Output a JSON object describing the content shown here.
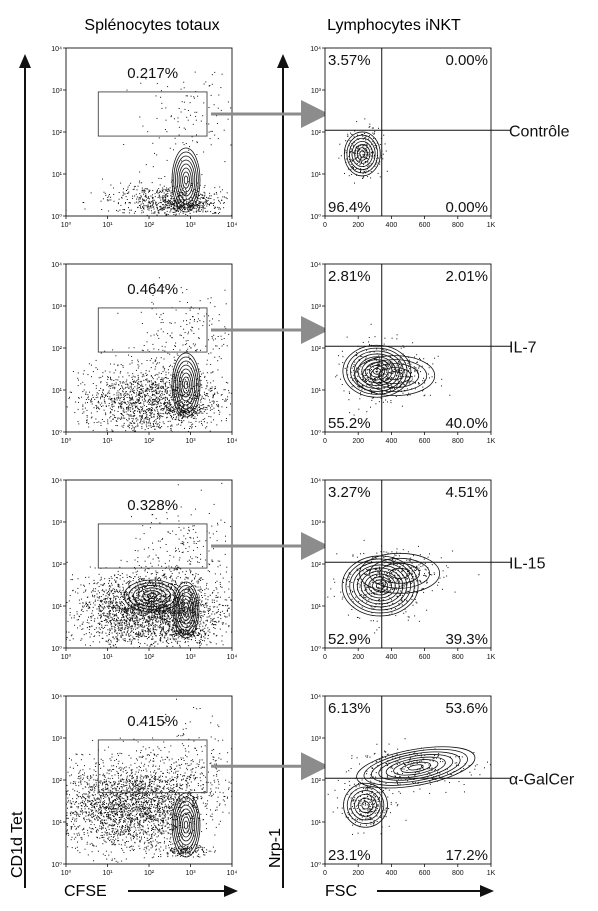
{
  "figure": {
    "left_column_title": "Splénocytes totaux",
    "right_column_title": "Lymphocytes iNKT",
    "left_y_axis_label": "CD1d Tet",
    "left_x_axis_label": "CFSE",
    "right_y_axis_label": "Nrp-1",
    "right_x_axis_label": "FSC",
    "colors": {
      "ink": "#111111",
      "arrow": "#8c8c8c",
      "gate": "#444444"
    }
  },
  "chart_data": [
    {
      "type": "contour",
      "panel": "splenocytes-controle",
      "x_scale": "log",
      "y_scale": "log",
      "xlim": [
        1,
        10000
      ],
      "ylim": [
        1,
        10000
      ],
      "x_tick_labels": [
        "10⁰",
        "10¹",
        "10²",
        "10³",
        "10⁴"
      ],
      "y_tick_labels": [
        "10⁰",
        "10¹",
        "10²",
        "10³",
        "10⁴"
      ],
      "gate": {
        "x_range": [
          6,
          2500
        ],
        "y_range": [
          80,
          900
        ],
        "label": "0.217%"
      }
    },
    {
      "type": "contour",
      "panel": "splenocytes-il7",
      "x_scale": "log",
      "y_scale": "log",
      "xlim": [
        1,
        10000
      ],
      "ylim": [
        1,
        10000
      ],
      "x_tick_labels": [
        "10⁰",
        "10¹",
        "10²",
        "10³",
        "10⁴"
      ],
      "y_tick_labels": [
        "10⁰",
        "10¹",
        "10²",
        "10³",
        "10⁴"
      ],
      "gate": {
        "x_range": [
          6,
          2500
        ],
        "y_range": [
          80,
          900
        ],
        "label": "0.464%"
      }
    },
    {
      "type": "contour",
      "panel": "splenocytes-il15",
      "x_scale": "log",
      "y_scale": "log",
      "xlim": [
        1,
        10000
      ],
      "ylim": [
        1,
        10000
      ],
      "x_tick_labels": [
        "10⁰",
        "10¹",
        "10²",
        "10³",
        "10⁴"
      ],
      "y_tick_labels": [
        "10⁰",
        "10¹",
        "10²",
        "10³",
        "10⁴"
      ],
      "gate": {
        "x_range": [
          6,
          2500
        ],
        "y_range": [
          80,
          900
        ],
        "label": "0.328%"
      }
    },
    {
      "type": "contour",
      "panel": "splenocytes-agalcer",
      "x_scale": "log",
      "y_scale": "log",
      "xlim": [
        1,
        10000
      ],
      "ylim": [
        1,
        10000
      ],
      "x_tick_labels": [
        "10⁰",
        "10¹",
        "10²",
        "10³",
        "10⁴"
      ],
      "y_tick_labels": [
        "10⁰",
        "10¹",
        "10²",
        "10³",
        "10⁴"
      ],
      "gate": {
        "x_range": [
          6,
          2500
        ],
        "y_range": [
          50,
          900
        ],
        "label": "0.415%"
      }
    },
    {
      "type": "contour",
      "panel": "inkt-controle",
      "condition": "Contrôle",
      "x_scale": "linear",
      "y_scale": "log",
      "xlim": [
        0,
        1024
      ],
      "ylim": [
        1,
        10000
      ],
      "x_tick_labels": [
        "0",
        "200",
        "400",
        "600",
        "800",
        "1K"
      ],
      "y_tick_labels": [
        "10⁰",
        "10¹",
        "10²",
        "10³",
        "10⁴"
      ],
      "quadrant_divider": {
        "x": 350,
        "y": 110
      },
      "quadrants": {
        "top_left": "3.57%",
        "top_right": "0.00%",
        "bottom_left": "96.4%",
        "bottom_right": "0.00%"
      }
    },
    {
      "type": "contour",
      "panel": "inkt-il7",
      "condition": "IL-7",
      "x_scale": "linear",
      "y_scale": "log",
      "xlim": [
        0,
        1024
      ],
      "ylim": [
        1,
        10000
      ],
      "x_tick_labels": [
        "0",
        "200",
        "400",
        "600",
        "800",
        "1K"
      ],
      "y_tick_labels": [
        "10⁰",
        "10¹",
        "10²",
        "10³",
        "10⁴"
      ],
      "quadrant_divider": {
        "x": 350,
        "y": 110
      },
      "quadrants": {
        "top_left": "2.81%",
        "top_right": "2.01%",
        "bottom_left": "55.2%",
        "bottom_right": "40.0%"
      }
    },
    {
      "type": "contour",
      "panel": "inkt-il15",
      "condition": "IL-15",
      "x_scale": "linear",
      "y_scale": "log",
      "xlim": [
        0,
        1024
      ],
      "ylim": [
        1,
        10000
      ],
      "x_tick_labels": [
        "0",
        "200",
        "400",
        "600",
        "800",
        "1K"
      ],
      "y_tick_labels": [
        "10⁰",
        "10¹",
        "10²",
        "10³",
        "10⁴"
      ],
      "quadrant_divider": {
        "x": 350,
        "y": 110
      },
      "quadrants": {
        "top_left": "3.27%",
        "top_right": "4.51%",
        "bottom_left": "52.9%",
        "bottom_right": "39.3%"
      }
    },
    {
      "type": "contour",
      "panel": "inkt-agalcer",
      "condition": "α-GalCer",
      "x_scale": "linear",
      "y_scale": "log",
      "xlim": [
        0,
        1024
      ],
      "ylim": [
        1,
        10000
      ],
      "x_tick_labels": [
        "0",
        "200",
        "400",
        "600",
        "800",
        "1K"
      ],
      "y_tick_labels": [
        "10⁰",
        "10¹",
        "10²",
        "10³",
        "10⁴"
      ],
      "quadrant_divider": {
        "x": 350,
        "y": 110
      },
      "quadrants": {
        "top_left": "6.13%",
        "top_right": "53.6%",
        "bottom_left": "23.1%",
        "bottom_right": "17.2%"
      }
    }
  ]
}
